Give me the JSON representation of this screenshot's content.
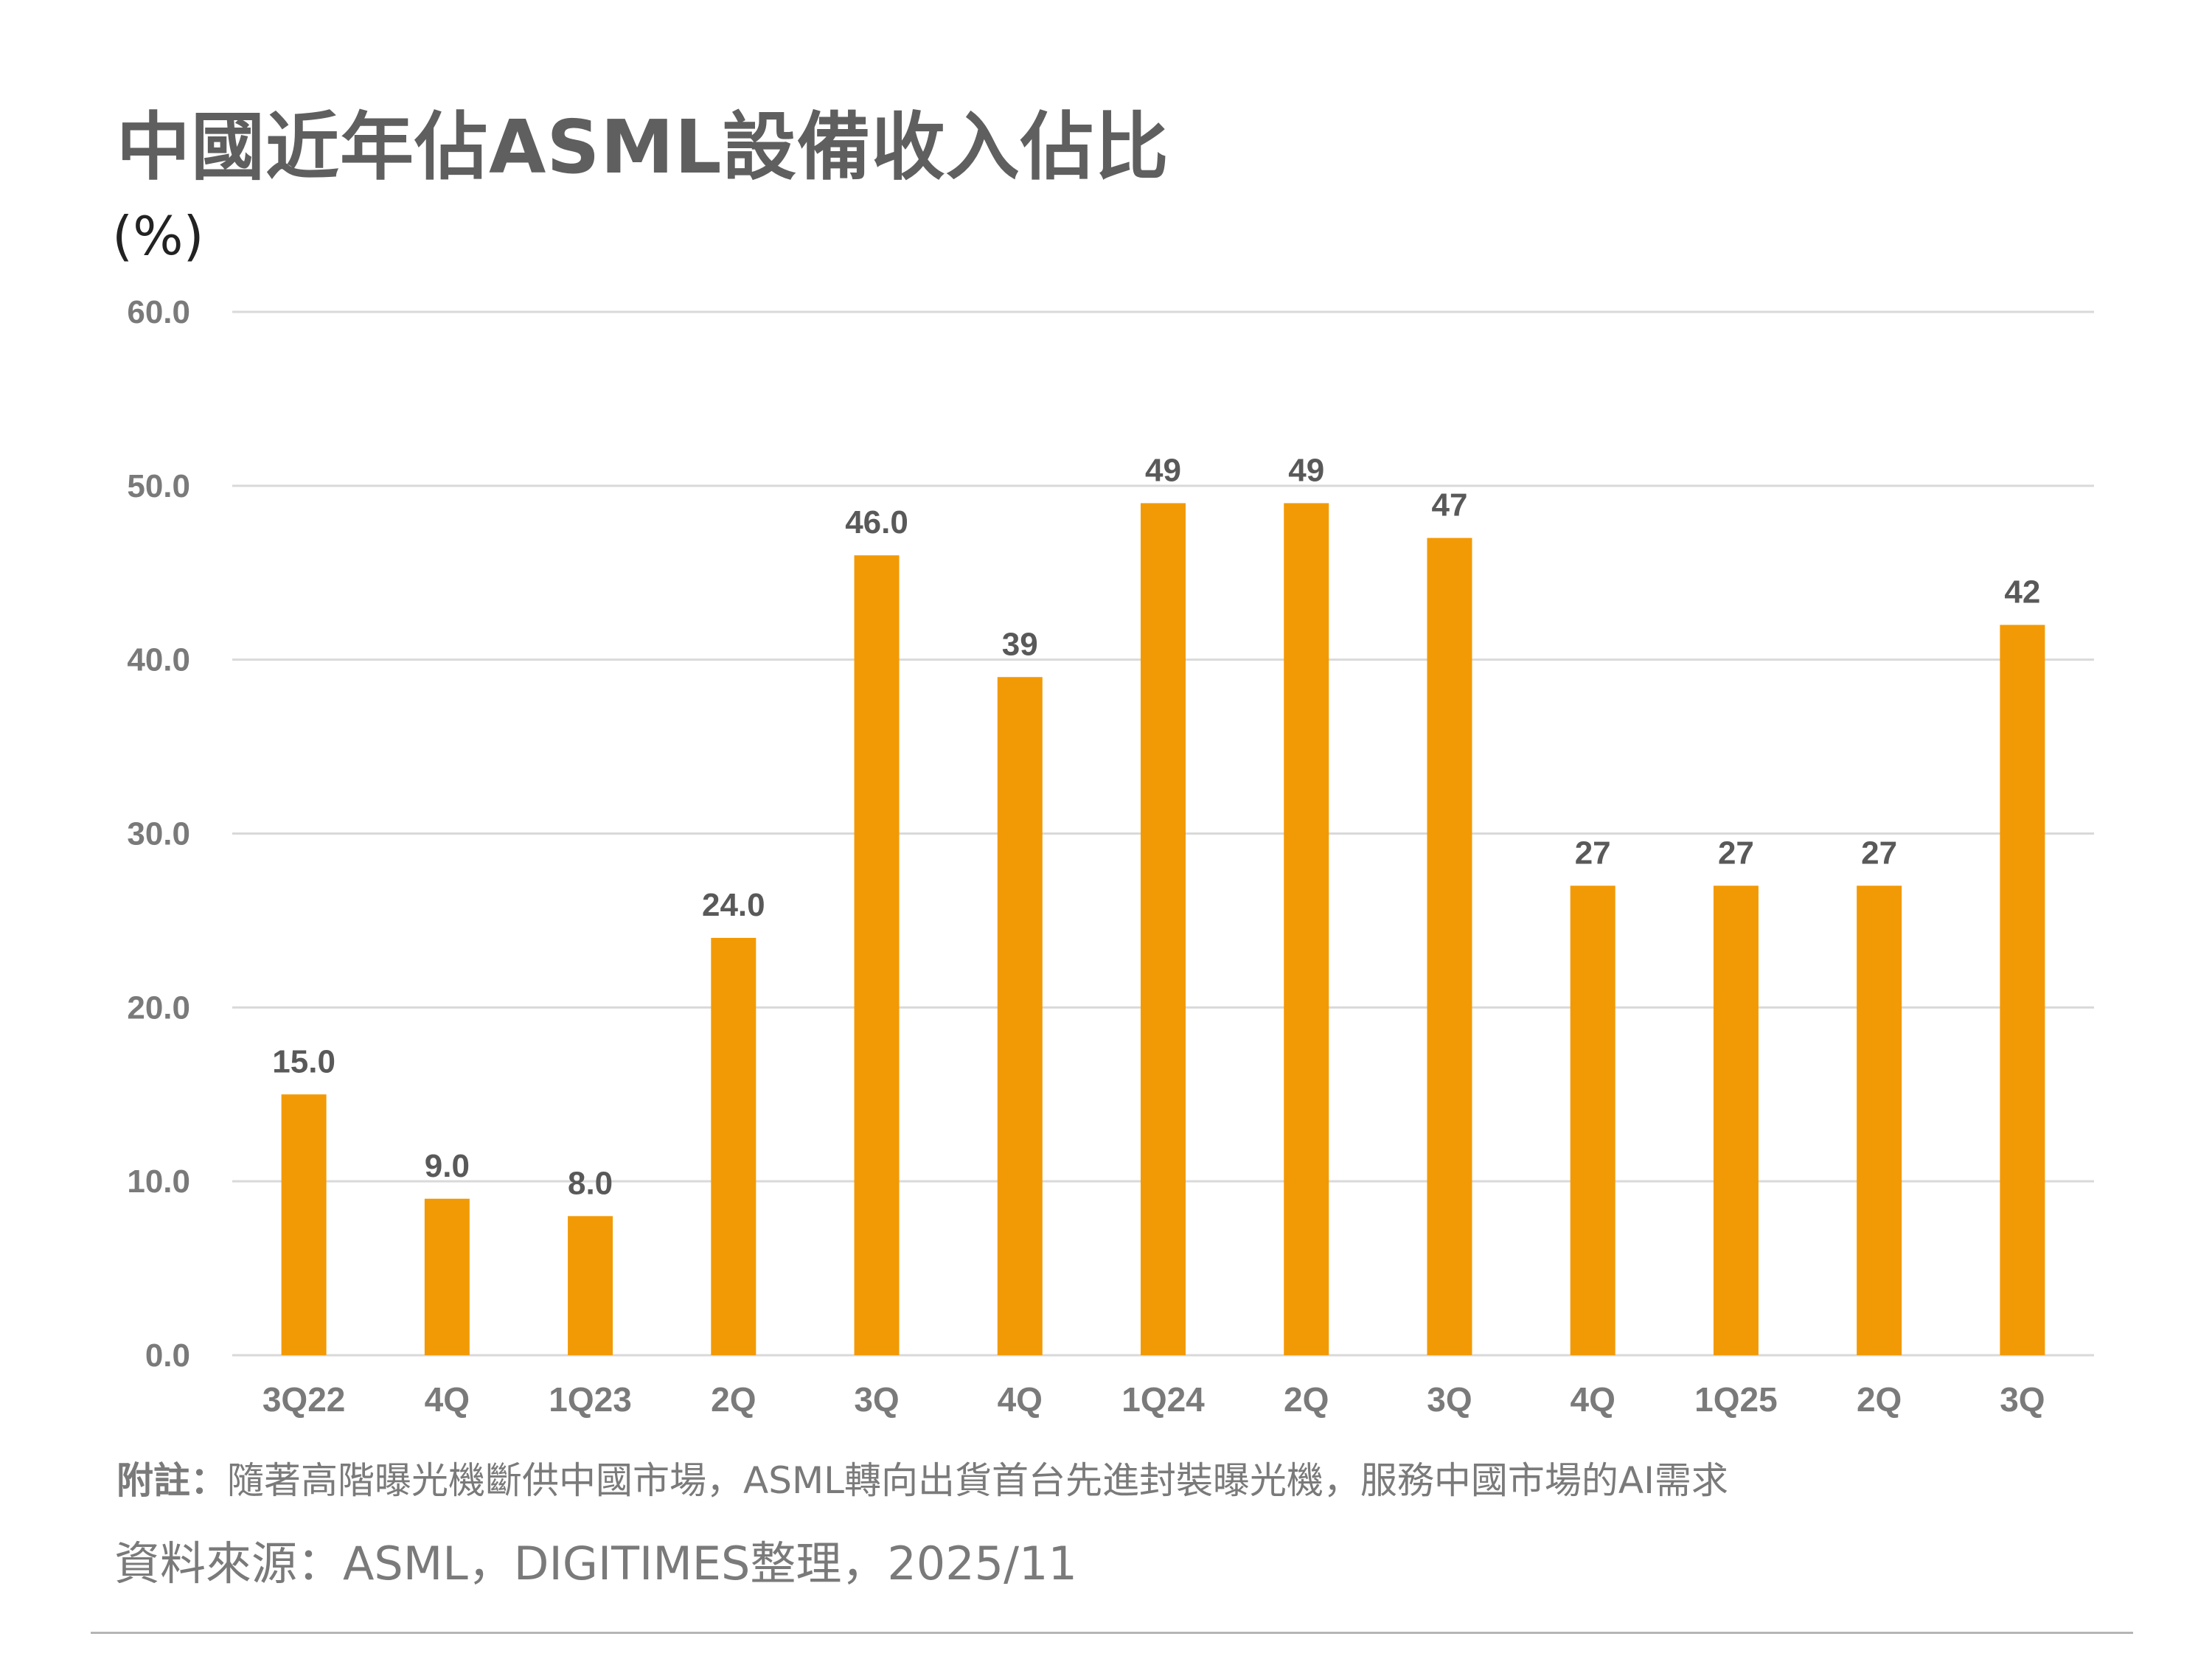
{
  "title": "中國近年佔ASML設備收入佔比",
  "note_label": "附註：",
  "note_text": "隨著高階曝光機斷供中國市場，ASML轉向出貨首台先進封裝曝光機，服務中國市場的AI需求",
  "source": "資料來源：ASML，DIGITIMES整理，2025/11",
  "colors": {
    "bar": "#F29A05",
    "grid": "#d9d9d9",
    "tick_text": "#7a7a7a",
    "label_text": "#595959"
  },
  "chart_data": {
    "type": "bar",
    "title": "中國近年佔ASML設備收入佔比",
    "ylabel": "(%)",
    "xlabel": "",
    "ylim": [
      0,
      60
    ],
    "yticks": [
      0,
      10,
      20,
      30,
      40,
      50,
      60
    ],
    "ytick_labels": [
      "0.0",
      "10.0",
      "20.0",
      "30.0",
      "40.0",
      "50.0",
      "60.0"
    ],
    "grid": true,
    "categories": [
      "3Q22",
      "4Q",
      "1Q23",
      "2Q",
      "3Q",
      "4Q",
      "1Q24",
      "2Q",
      "3Q",
      "4Q",
      "1Q25",
      "2Q",
      "3Q"
    ],
    "values": [
      15,
      9,
      8,
      24,
      46,
      39,
      49,
      49,
      47,
      27,
      27,
      27,
      42
    ],
    "data_labels": [
      "15.0",
      "9.0",
      "8.0",
      "24.0",
      "46.0",
      "39",
      "49",
      "49",
      "47",
      "27",
      "27",
      "27",
      "42"
    ]
  }
}
